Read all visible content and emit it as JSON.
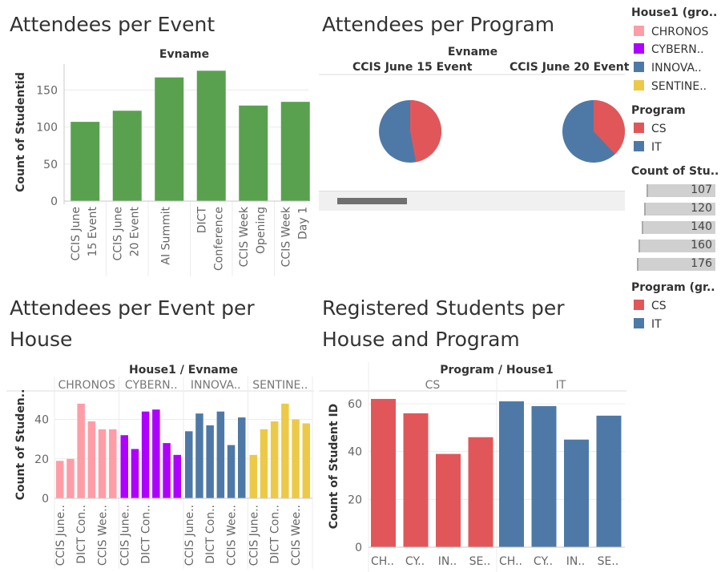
{
  "colors": {
    "green": "#59a14f",
    "pink": "#ff9da7",
    "purple": "#af00ff",
    "blue": "#4e79a7",
    "yellow": "#edc948",
    "red": "#e15759",
    "grid": "#ececec",
    "axis": "#c8c8c8"
  },
  "panels": {
    "p1_title": "Attendees per Event",
    "p2_title": "Attendees per Program",
    "p3_title_line1": "Attendees per Event per",
    "p3_title_line2": "House",
    "p4_title_line1": "Registered Students per",
    "p4_title_line2": "House and Program"
  },
  "pie_panel": {
    "header": "Evname",
    "col1": "CCIS June 15 Event",
    "col2": "CCIS June 20 Event",
    "pies": [
      {
        "event": "CCIS June 15 Event",
        "CS": 0.47,
        "IT": 0.53
      },
      {
        "event": "CCIS June 20 Event",
        "CS": 0.38,
        "IT": 0.62
      }
    ],
    "scrollbar": "horizontal-scrollbar"
  },
  "legends": {
    "house_title": "House1 (gro..",
    "houses": [
      {
        "label": "CHRONOS",
        "color": "#ff9da7"
      },
      {
        "label": "CYBERN..",
        "color": "#af00ff"
      },
      {
        "label": "INNOVA..",
        "color": "#4e79a7"
      },
      {
        "label": "SENTINE..",
        "color": "#edc948"
      }
    ],
    "program_title": "Program",
    "programs": [
      {
        "label": "CS",
        "color": "#e15759"
      },
      {
        "label": "IT",
        "color": "#4e79a7"
      }
    ],
    "count_title": "Count of Stu..",
    "counts": [
      "107",
      "120",
      "140",
      "160",
      "176"
    ],
    "program_gr_title": "Program (gr..",
    "programs_gr": [
      {
        "label": "CS",
        "color": "#e15759"
      },
      {
        "label": "IT",
        "color": "#4e79a7"
      }
    ]
  },
  "chart_data": [
    {
      "type": "bar",
      "title": "Attendees per Event",
      "header": "Evname",
      "ylabel": "Count of Studentid",
      "ylim": [
        0,
        185
      ],
      "yticks": [
        "0",
        "50",
        "100",
        "150"
      ],
      "categories": [
        [
          "CCIS June",
          "15 Event"
        ],
        [
          "CCIS June",
          "20 Event"
        ],
        [
          "AI Summit"
        ],
        [
          "DICT",
          "Conference"
        ],
        [
          "CCIS Week",
          "Opening"
        ],
        [
          "CCIS Week",
          "Day 1"
        ]
      ],
      "values": [
        107,
        122,
        167,
        176,
        129,
        134
      ],
      "color": "#59a14f"
    },
    {
      "type": "pie",
      "title": "Attendees per Program",
      "header": "Evname",
      "categories": [
        "CCIS June 15 Event",
        "CCIS June 20 Event"
      ],
      "series": [
        {
          "name": "CS",
          "values": [
            0.47,
            0.38
          ]
        },
        {
          "name": "IT",
          "values": [
            0.53,
            0.62
          ]
        }
      ]
    },
    {
      "type": "bar",
      "title": "Attendees per Event per House",
      "header": "House1  /  Evname",
      "ylabel": "Count of Studen..",
      "ylim": [
        0,
        52
      ],
      "yticks": [
        "0",
        "20",
        "40"
      ],
      "groups": [
        {
          "name": "CHRONOS",
          "color": "#ff9da7",
          "values": [
            19,
            20,
            48,
            39,
            35,
            35
          ]
        },
        {
          "name": "CYBERN..",
          "color": "#af00ff",
          "values": [
            32,
            25,
            44,
            45,
            28,
            22
          ]
        },
        {
          "name": "INNOVA..",
          "color": "#4e79a7",
          "values": [
            34,
            43,
            37,
            44,
            27,
            41
          ]
        },
        {
          "name": "SENTINE..",
          "color": "#edc948",
          "values": [
            22,
            35,
            39,
            48,
            40,
            38
          ]
        }
      ],
      "xlabels": [
        "CCIS June..",
        "DICT Con..",
        "CCIS Wee.."
      ]
    },
    {
      "type": "bar",
      "title": "Registered Students per House and Program",
      "header": "Program  /  House1",
      "ylabel": "Count of Student ID",
      "ylim": [
        0,
        64
      ],
      "yticks": [
        "0",
        "20",
        "40",
        "60"
      ],
      "groups": [
        {
          "name": "CS",
          "color": "#e15759",
          "values": [
            62,
            56,
            39,
            46
          ]
        },
        {
          "name": "IT",
          "color": "#4e79a7",
          "values": [
            61,
            59,
            45,
            55
          ]
        }
      ],
      "categories": [
        "CH..",
        "CY..",
        "IN..",
        "SE.."
      ]
    }
  ]
}
